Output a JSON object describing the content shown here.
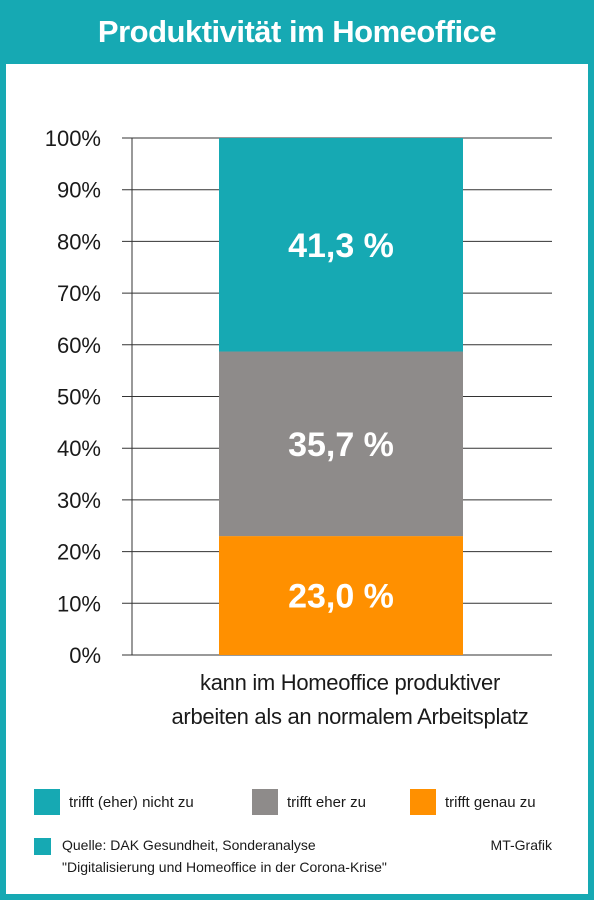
{
  "title": "Produktivität im Homeoffice",
  "chart_data": {
    "type": "bar",
    "stacked": true,
    "categories": [
      "kann im Homeoffice produktiver arbeiten als an normalem Arbeitsplatz"
    ],
    "category_lines": [
      "kann im Homeoffice produktiver",
      "arbeiten als an normalem Arbeitsplatz"
    ],
    "series": [
      {
        "name": "trifft genau zu",
        "values": [
          23.0
        ],
        "label": "23,0 %",
        "color": "#ff9000"
      },
      {
        "name": "trifft eher zu",
        "values": [
          35.7
        ],
        "label": "35,7 %",
        "color": "#8e8b8a"
      },
      {
        "name": "trifft (eher) nicht zu",
        "values": [
          41.3
        ],
        "label": "41,3 %",
        "color": "#16a9b3"
      }
    ],
    "ylim": [
      0,
      100
    ],
    "yticks": [
      "0%",
      "10%",
      "20%",
      "30%",
      "40%",
      "50%",
      "60%",
      "70%",
      "80%",
      "90%",
      "100%"
    ],
    "grid": true,
    "legend_position": "bottom",
    "legend": [
      {
        "label": "trifft (eher) nicht zu",
        "color": "#16a9b3"
      },
      {
        "label": "trifft eher zu",
        "color": "#8e8b8a"
      },
      {
        "label": "trifft genau zu",
        "color": "#ff9000"
      }
    ]
  },
  "source": {
    "line1": "Quelle: DAK Gesundheit, Sonderanalyse",
    "line2": "\"Digitalisierung und Homeoffice in der Corona-Krise\""
  },
  "credit": "MT-Grafik",
  "colors": {
    "accent": "#16a9b3",
    "grid": "#333333"
  }
}
